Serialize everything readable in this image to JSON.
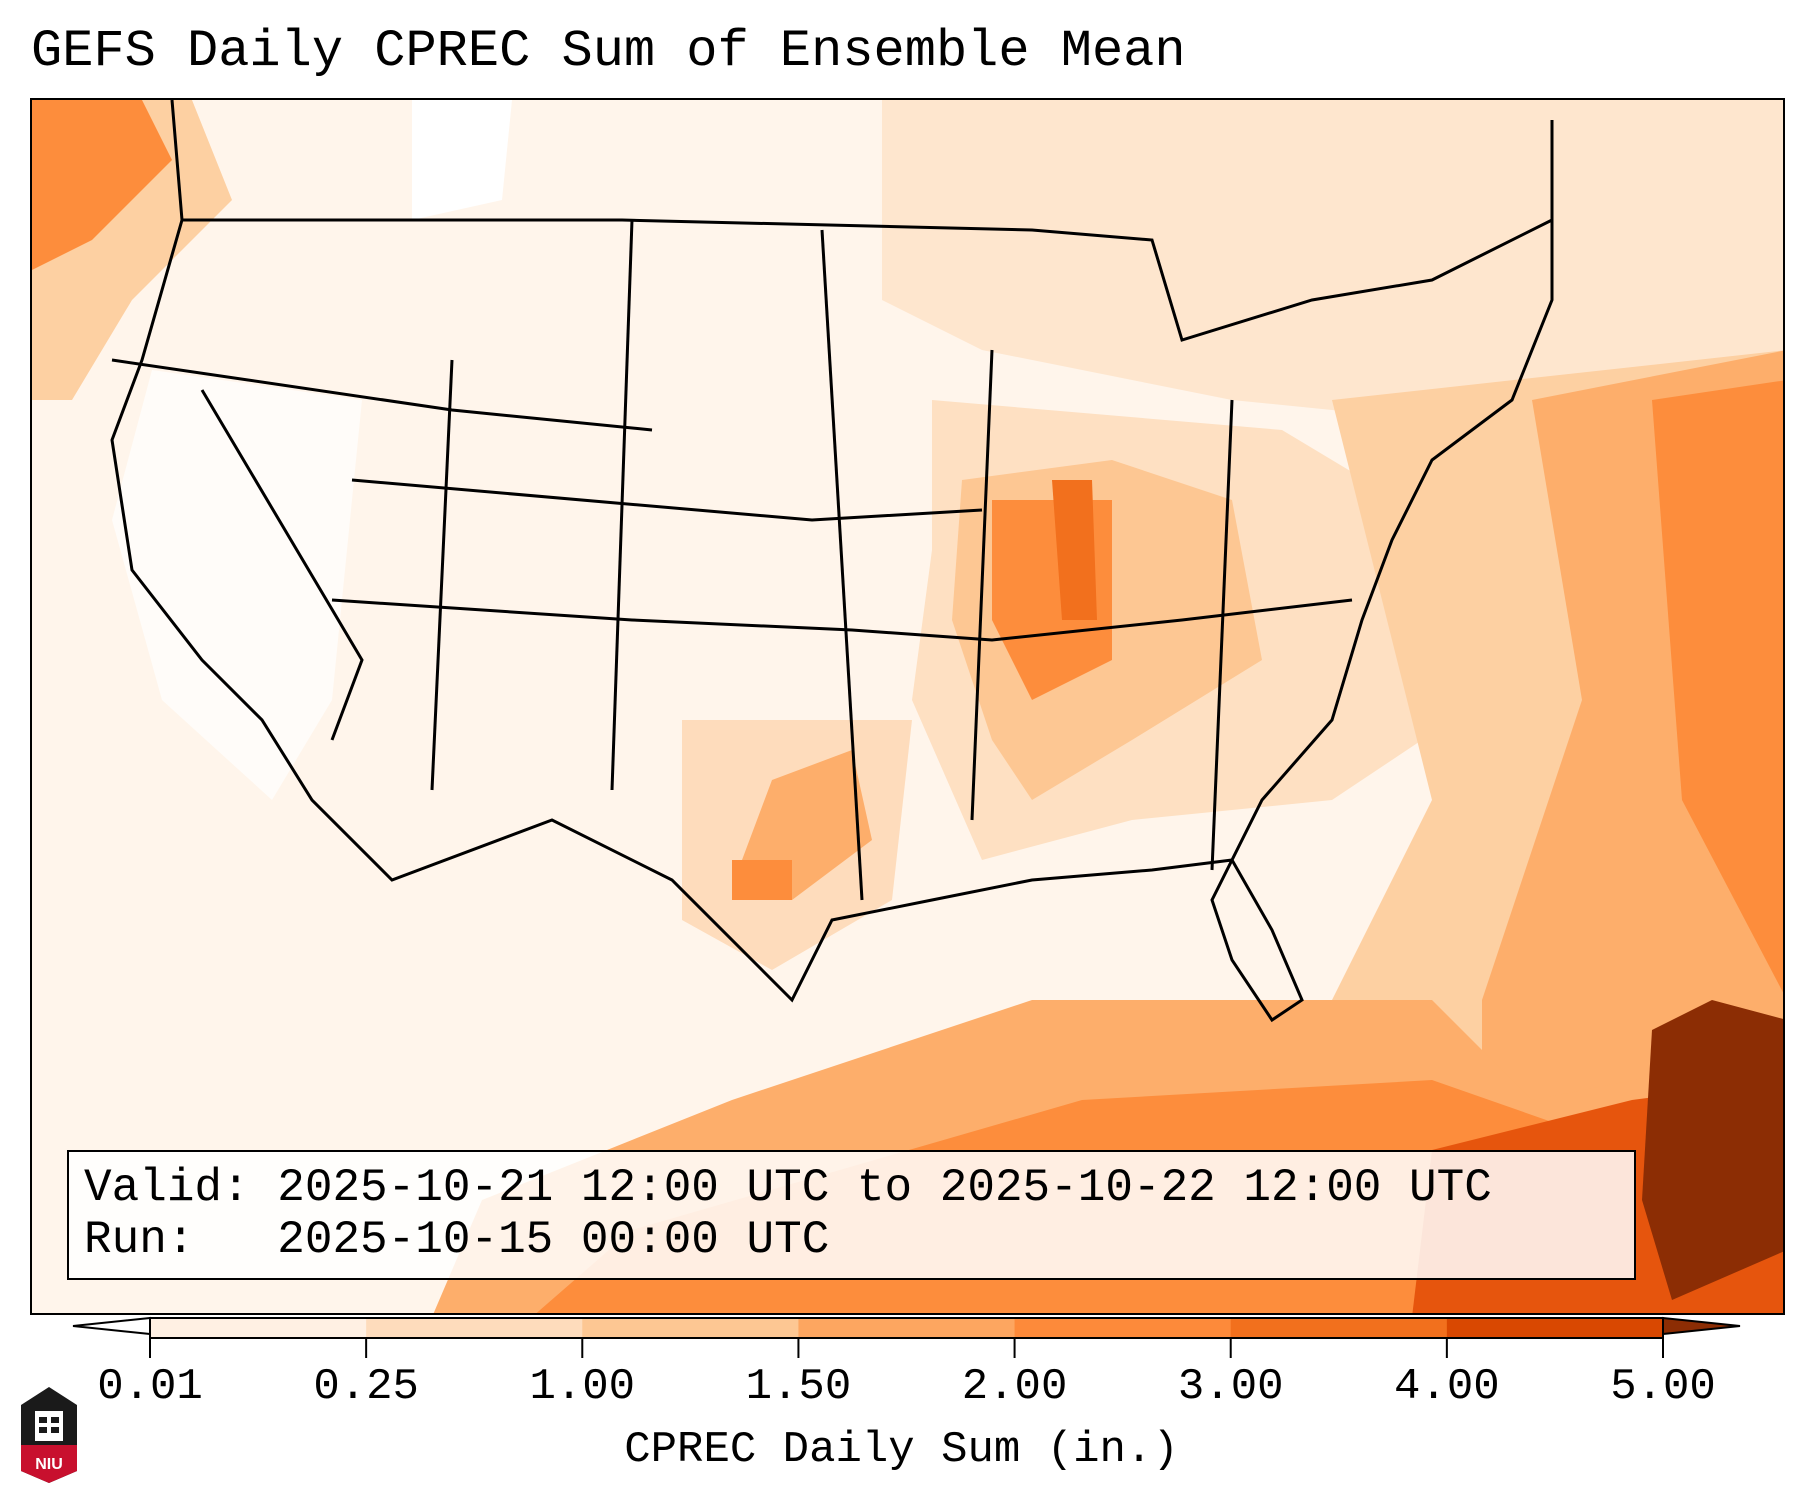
{
  "title": "GEFS Daily CPREC Sum of Ensemble Mean",
  "info": {
    "valid": "Valid: 2025-10-21 12:00 UTC to 2025-10-22 12:00 UTC",
    "run": "Run:   2025-10-15 00:00 UTC"
  },
  "colorbar": {
    "label": "CPREC Daily Sum (in.)",
    "ticks": [
      "0.01",
      "0.25",
      "1.00",
      "1.50",
      "2.00",
      "3.00",
      "4.00",
      "5.00"
    ],
    "colors": [
      "#ffffff",
      "#fff0e3",
      "#fedcbc",
      "#fdc793",
      "#fda660",
      "#fd8a3a",
      "#f2701d",
      "#d94801",
      "#8c2d04"
    ]
  },
  "logo": {
    "text": "NIU"
  }
}
